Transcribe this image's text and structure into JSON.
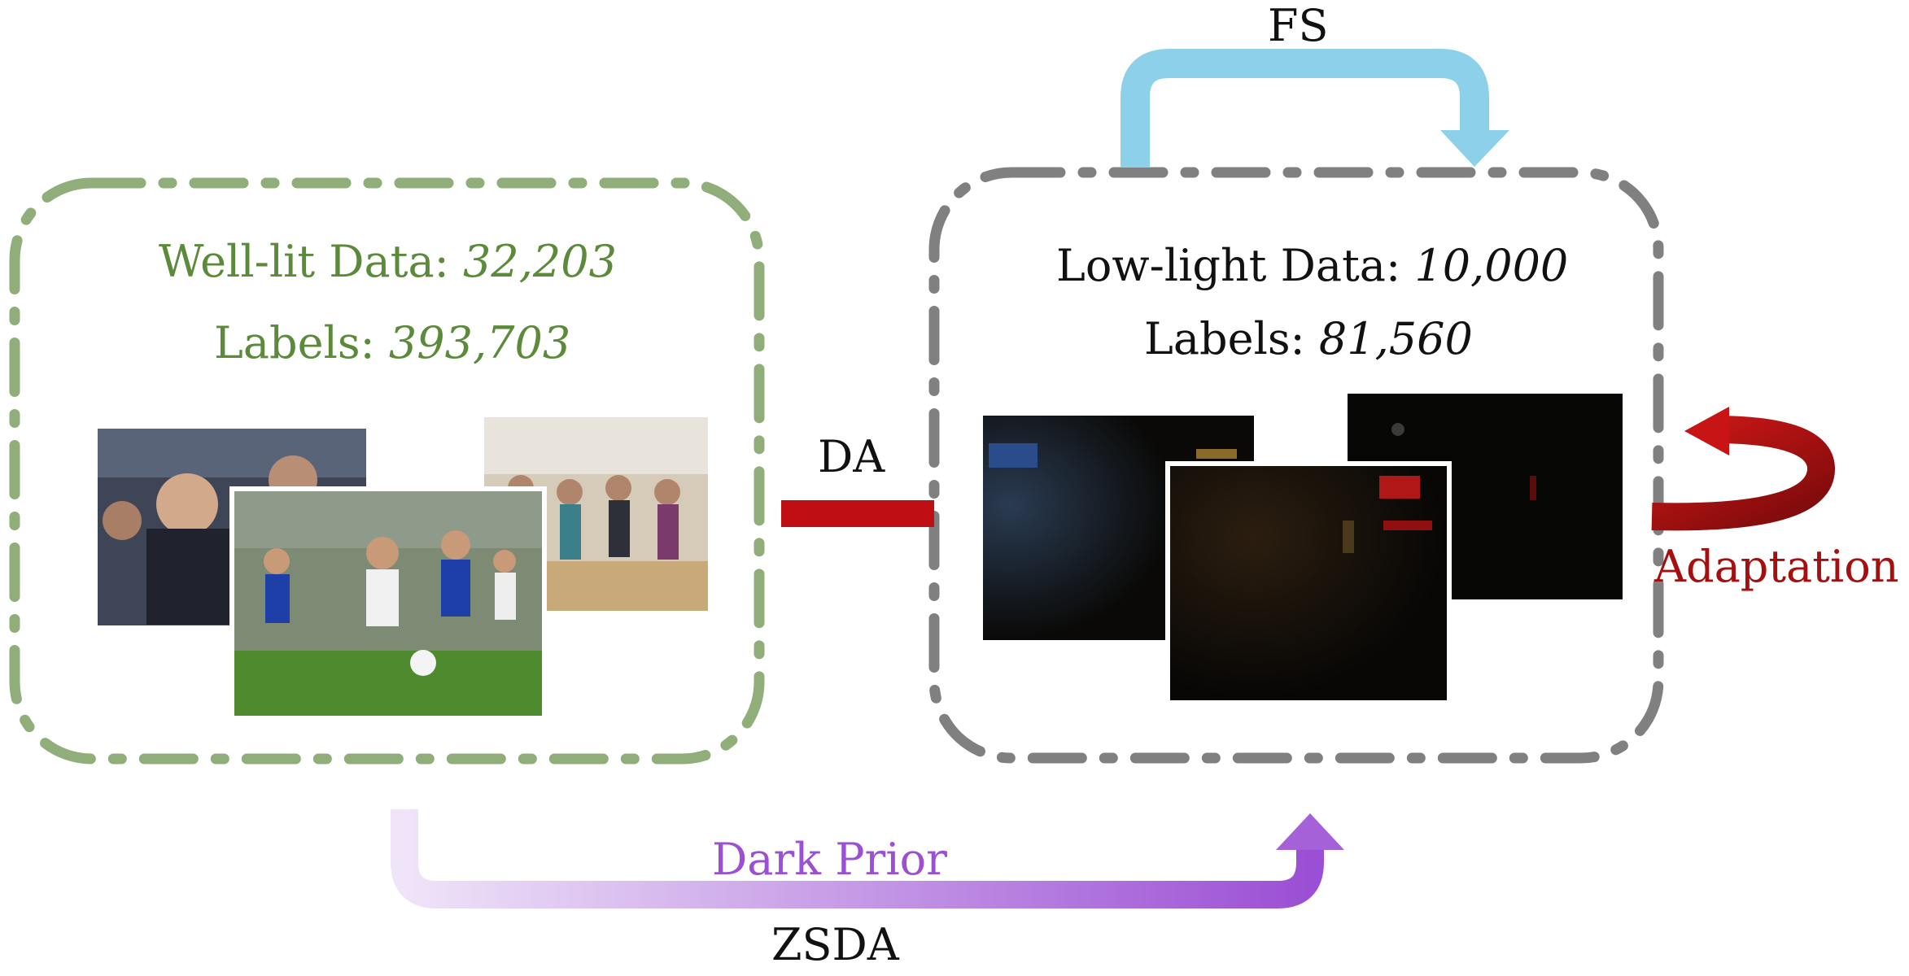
{
  "source_box": {
    "data_label": "Well-lit Data: ",
    "data_value": "32,203",
    "labels_label": "Labels: ",
    "labels_value": "393,703",
    "color": "#8fae7a",
    "text_color": "#5a8a3a"
  },
  "target_box": {
    "data_label": "Low-light Data: ",
    "data_value": "10,000",
    "labels_label": "Labels: ",
    "labels_value": "81,560",
    "color": "#808080"
  },
  "arrows": {
    "fs": {
      "label": "FS",
      "color": "#8dd0ea"
    },
    "da": {
      "label": "DA",
      "color": "#c00f14"
    },
    "adaptation": {
      "label": "Adaptation",
      "color": "#a50f0f"
    },
    "dark_prior": {
      "label": "Dark Prior",
      "color": "#9b4fd4"
    },
    "zsda": {
      "label": "ZSDA"
    }
  },
  "images": {
    "well_lit": [
      "stock-exchange-photo",
      "soccer-game-photo",
      "dance-class-photo"
    ],
    "low_light": [
      "dark-street-photo",
      "dark-night-market-photo",
      "dark-alley-photo"
    ]
  }
}
